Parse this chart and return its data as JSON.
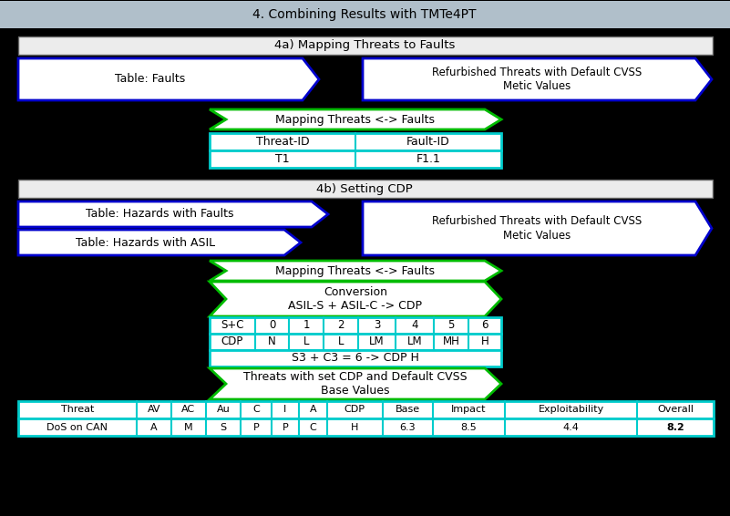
{
  "title": "4. Combining Results with TMTe4PT",
  "title_bg": "#b0bfca",
  "bg_color": "#000000",
  "section_4a_label": "4a) Mapping Threats to Faults",
  "section_4b_label": "4b) Setting CDP",
  "mapping_4a_label": "Mapping Threats <-> Faults",
  "mapping_4b_label": "Mapping Threats <-> Faults",
  "conversion_label": "Conversion\nASIL-S + ASIL-C -> CDP",
  "cdp_table_row1": [
    "S+C",
    "0",
    "1",
    "2",
    "3",
    "4",
    "5",
    "6"
  ],
  "cdp_table_row2": [
    "CDP",
    "N",
    "L",
    "L",
    "LM",
    "LM",
    "MH",
    "H"
  ],
  "cdp_highlight": "S3 + C3 = 6 -> CDP H",
  "threats_label": "Threats with set CDP and Default CVSS\nBase Values",
  "final_table_headers": [
    "Threat",
    "AV",
    "AC",
    "Au",
    "C",
    "I",
    "A",
    "CDP",
    "Base",
    "Impact",
    "Exploitability",
    "Overall"
  ],
  "final_table_row": [
    "DoS on CAN",
    "A",
    "M",
    "S",
    "P",
    "P",
    "C",
    "H",
    "6.3",
    "8.5",
    "4.4",
    "8.2"
  ],
  "final_table_bold_col": 11,
  "blue_border": "#0000cc",
  "cyan_border": "#00cccc",
  "green_border": "#00bb00"
}
